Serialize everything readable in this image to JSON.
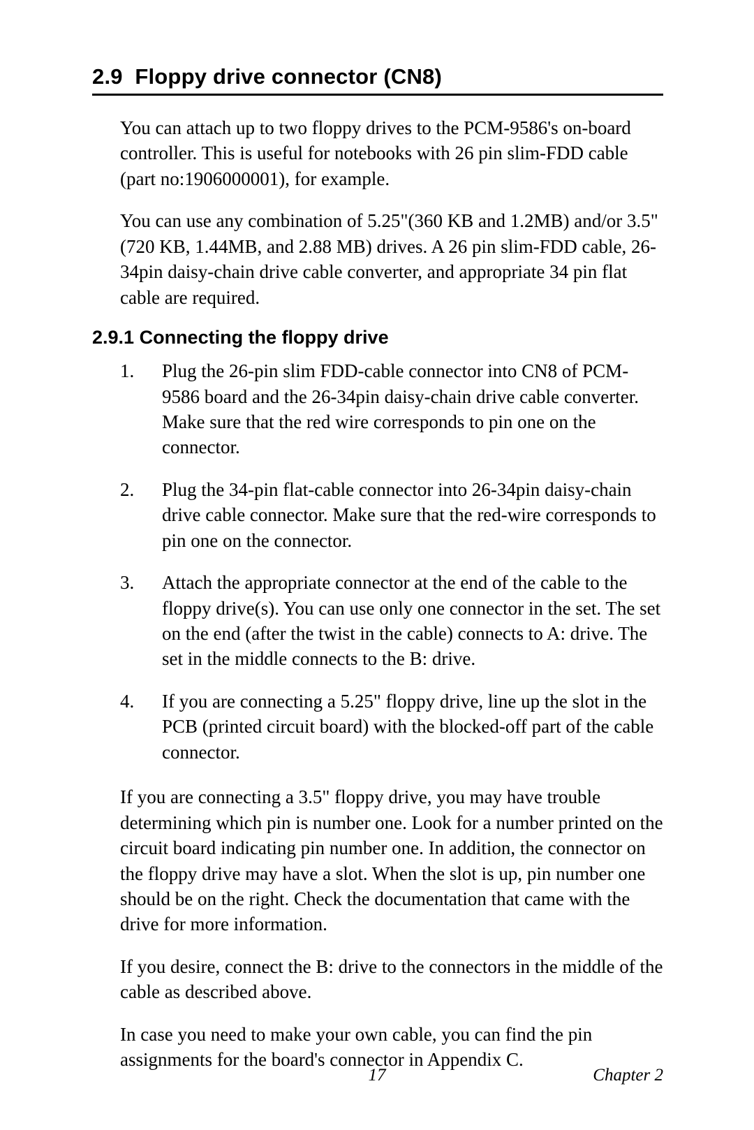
{
  "section": {
    "number": "2.9",
    "title": "Floppy drive connector (CN8)"
  },
  "intro_paragraphs": [
    "You can attach up to two floppy drives to the PCM-9586's on-board controller. This is useful for notebooks with 26 pin slim-FDD cable (part no:1906000001), for example.",
    "You can use any combination of 5.25\"(360 KB and 1.2MB) and/or 3.5\"(720 KB, 1.44MB, and 2.88 MB) drives. A 26 pin slim-FDD cable, 26-34pin daisy-chain drive cable converter, and appropriate 34 pin flat cable are required."
  ],
  "subsection": {
    "number": "2.9.1",
    "title": "Connecting the floppy drive"
  },
  "steps": [
    "Plug the 26-pin slim FDD-cable connector into CN8 of PCM-9586 board and the 26-34pin daisy-chain drive cable converter. Make sure that the red wire corresponds to pin one on the connector.",
    "Plug the 34-pin flat-cable connector into 26-34pin daisy-chain drive cable connector. Make sure that the red-wire corresponds to pin one on the connector.",
    "Attach the appropriate connector at the end of the cable to the floppy drive(s). You can use only one connector in the set. The set on the end (after the twist in the cable) connects to A: drive. The set in the middle connects to the B: drive.",
    "If you are connecting a 5.25\" floppy drive, line up the slot in the PCB (printed circuit board) with the blocked-off part of the cable connector."
  ],
  "trailing_paragraphs": [
    " If you are connecting a 3.5\" floppy drive, you may have trouble determining which pin is number one. Look for a number printed on the circuit board indicating pin number one. In addition, the connector on the floppy drive may have a slot. When the slot is up, pin number one should be on the right. Check the documentation that came with the drive for more information.",
    "If you desire, connect the B: drive to the connectors in the middle of the cable as described above.",
    "In case you need to make your own cable, you can find the pin assignments for the board's connector in Appendix C."
  ],
  "footer": {
    "page_number": "17",
    "chapter_label": "Chapter 2"
  }
}
